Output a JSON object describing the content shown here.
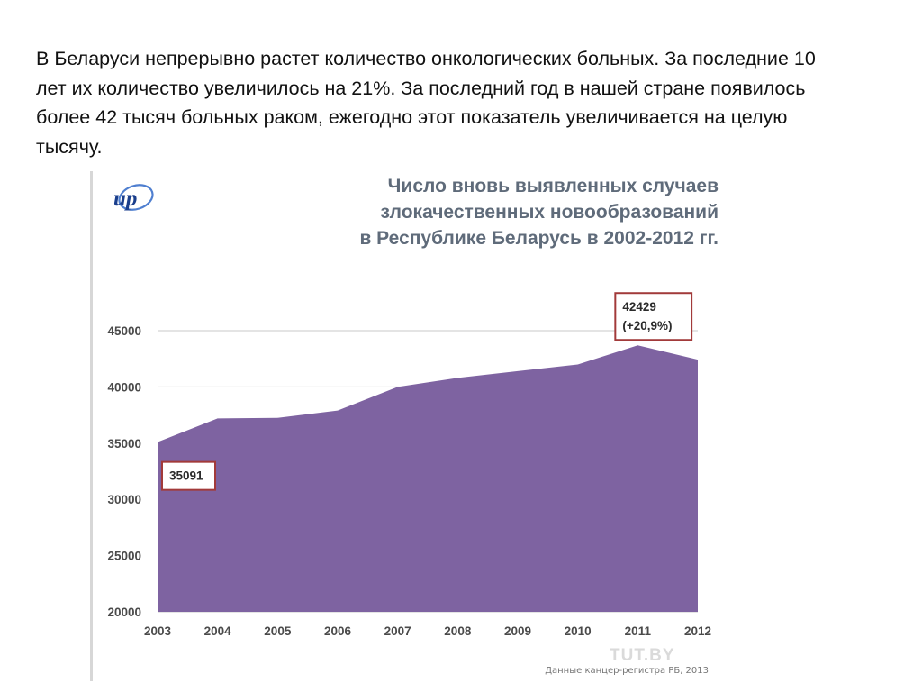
{
  "slide": {
    "paragraph": "В Беларуси непрерывно растет количество онкологических больных. За последние 10 лет их количество увеличилось на 21%. За последний год в нашей стране появилось более 42 тысяч больных раком, ежегодно этот показатель увеличивается на целую тысячу."
  },
  "logo": {
    "text": "ир",
    "icon": "brand-logo-icon",
    "color": "#1a3e8c"
  },
  "source_note": "Данные канцер-регистра РБ, 2013",
  "watermark": "TUT.BY",
  "colors": {
    "area": "#7e63a1",
    "callout_border": "#a23a3a",
    "title": "#5f6b7a",
    "grid": "#c8c8c8"
  },
  "chart_data": {
    "type": "area",
    "title_lines": [
      "Число вновь выявленных случаев",
      "злокачественных новообразований",
      "в Республике Беларусь в 2002-2012 гг."
    ],
    "xlabel": "",
    "ylabel": "",
    "categories": [
      "2003",
      "2004",
      "2005",
      "2006",
      "2007",
      "2008",
      "2009",
      "2010",
      "2011",
      "2012"
    ],
    "series": [
      {
        "values": [
          35091,
          37200,
          37250,
          37900,
          40000,
          40800,
          41400,
          42000,
          43700,
          42429
        ]
      }
    ],
    "ylim": [
      20000,
      45000
    ],
    "yticks": [
      20000,
      25000,
      30000,
      35000,
      40000,
      45000
    ],
    "grid": true,
    "annotations": [
      {
        "category": "2003",
        "lines": [
          "35091"
        ]
      },
      {
        "category": "2011",
        "lines": [
          "42429",
          "(+20,9%)"
        ]
      }
    ]
  }
}
